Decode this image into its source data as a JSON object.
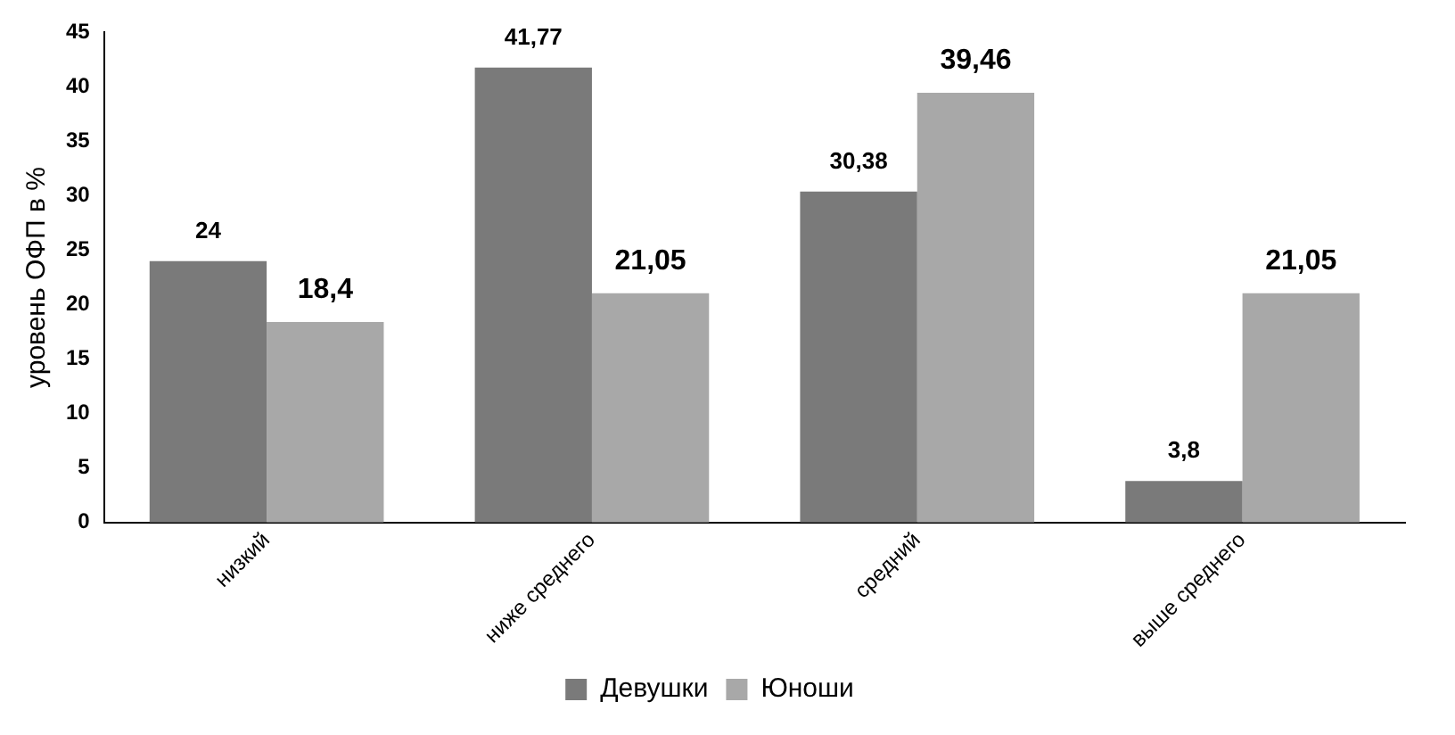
{
  "chart_data": {
    "type": "bar",
    "ylabel": "уровень ОФП в %",
    "categories": [
      "низкий",
      "ниже среднего",
      "средний",
      "выше среднего"
    ],
    "series": [
      {
        "name": "Девушки",
        "color": "#7a7a7a",
        "values": [
          24,
          41.77,
          30.38,
          3.8
        ],
        "value_labels": [
          "24",
          "41,77",
          "30,38",
          "3,8"
        ]
      },
      {
        "name": "Юноши",
        "color": "#a8a8a8",
        "values": [
          18.4,
          21.05,
          39.46,
          21.05
        ],
        "value_labels": [
          "18,4",
          "21,05",
          "39,46",
          "21,05"
        ]
      }
    ],
    "ylim": [
      0,
      45
    ],
    "yticks": [
      0,
      5,
      10,
      15,
      20,
      25,
      30,
      35,
      40,
      45
    ],
    "grid": false,
    "legend": "bottom"
  }
}
